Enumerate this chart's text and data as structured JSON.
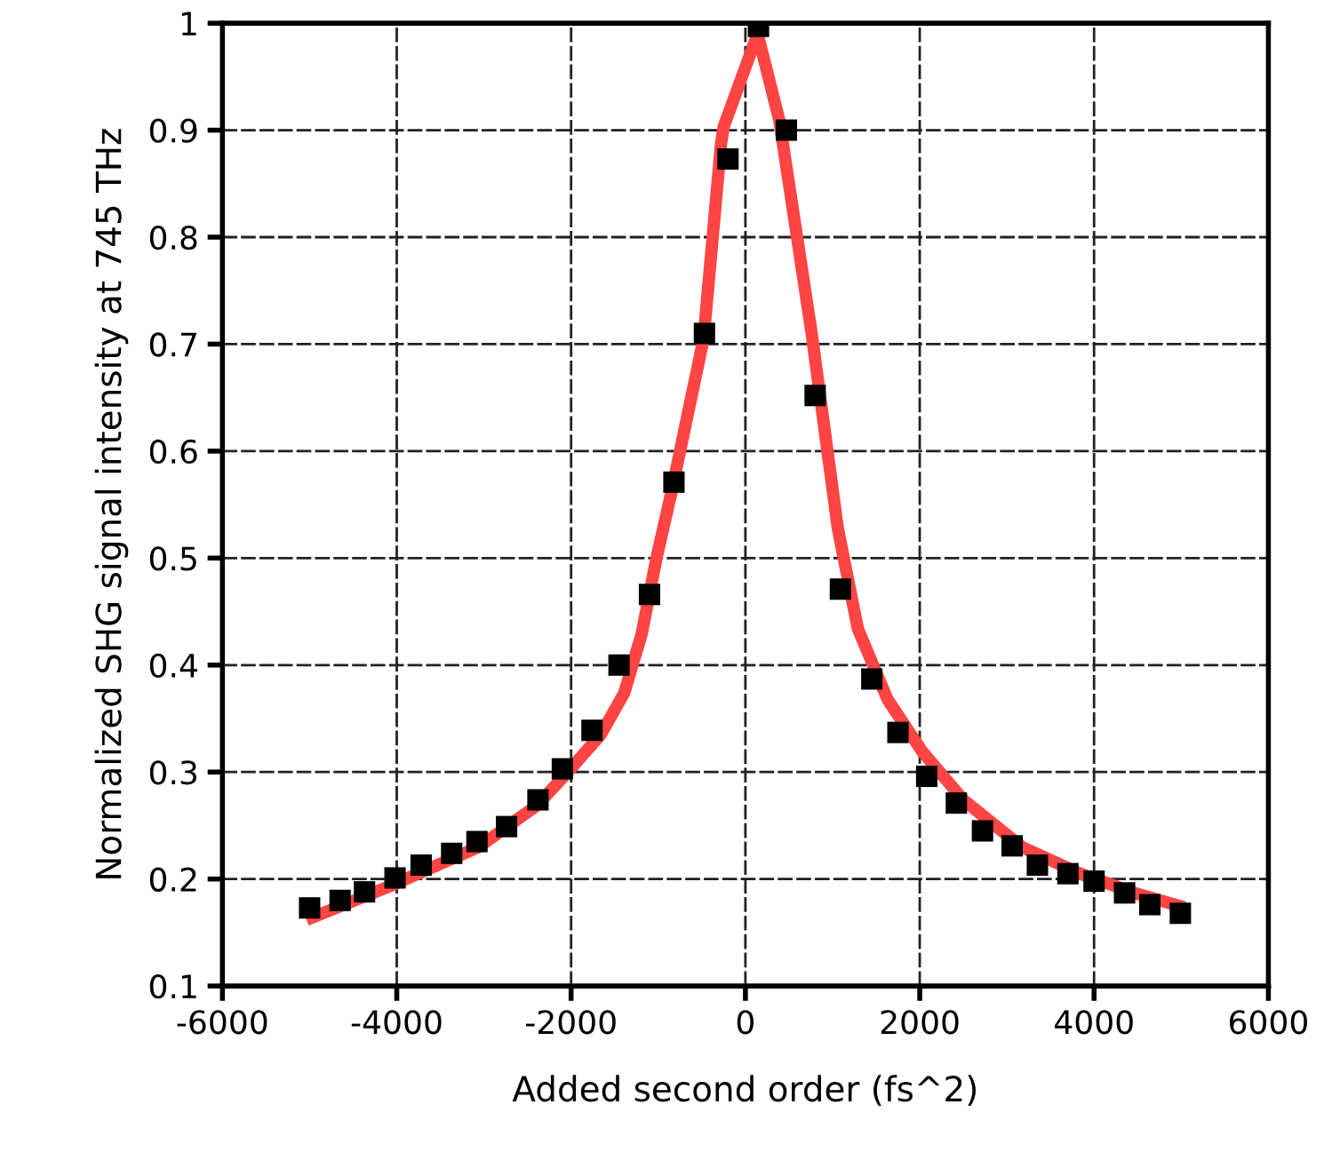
{
  "chart_data": {
    "type": "scatter",
    "xlabel": "Added second order (fs^2)",
    "ylabel": "Normalized SHG signal intensity at 745 THz",
    "xlim": [
      -6000,
      6000
    ],
    "xticks": [
      -6000,
      -4000,
      -2000,
      0,
      2000,
      4000,
      6000
    ],
    "ylim": [
      0.1,
      1
    ],
    "yticks": [
      {
        "value": 0.1,
        "label": "0.1"
      },
      {
        "value": 0.2,
        "label": "0.2"
      },
      {
        "value": 0.3,
        "label": "0.3"
      },
      {
        "value": 0.4,
        "label": "0.4"
      },
      {
        "value": 0.5,
        "label": "0.5"
      },
      {
        "value": 0.6,
        "label": "0.6"
      },
      {
        "value": 0.7,
        "label": "0.7"
      },
      {
        "value": 0.8,
        "label": "0.8"
      },
      {
        "value": 0.9,
        "label": "0.9"
      },
      {
        "value": 1,
        "label": "1"
      }
    ],
    "grid": true,
    "series": [
      {
        "type": "line",
        "color": "#ff4444",
        "marker": "none",
        "line_style": "solid",
        "x": [
          -4970,
          -4060,
          -3060,
          -2390,
          -2060,
          -1660,
          -1390,
          -1190,
          -1020,
          -850,
          -480,
          -280,
          -250,
          140,
          390,
          760,
          1060,
          1290,
          1630,
          2030,
          2500,
          3170,
          3840,
          4500,
          4970
        ],
        "values": [
          0.164,
          0.194,
          0.23,
          0.269,
          0.298,
          0.335,
          0.374,
          0.429,
          0.5,
          0.561,
          0.705,
          0.887,
          0.903,
          0.99,
          0.909,
          0.71,
          0.528,
          0.434,
          0.368,
          0.319,
          0.274,
          0.23,
          0.205,
          0.186,
          0.175
        ]
      },
      {
        "color": "#000000",
        "marker": "square",
        "x": [
          -5000,
          -4650,
          -4370,
          -4020,
          -3720,
          -3370,
          -3080,
          -2740,
          -2380,
          -2100,
          -1760,
          -1450,
          -1100,
          -820,
          -470,
          -200,
          150,
          470,
          800,
          1090,
          1450,
          1750,
          2080,
          2420,
          2720,
          3060,
          3350,
          3700,
          4000,
          4350,
          4640,
          4990
        ],
        "values": [
          0.173,
          0.18,
          0.188,
          0.201,
          0.213,
          0.224,
          0.235,
          0.249,
          0.274,
          0.303,
          0.339,
          0.4,
          0.466,
          0.571,
          0.71,
          0.873,
          0.997,
          0.9,
          0.652,
          0.471,
          0.387,
          0.337,
          0.296,
          0.271,
          0.245,
          0.231,
          0.213,
          0.205,
          0.198,
          0.187,
          0.176,
          0.168
        ]
      }
    ]
  }
}
